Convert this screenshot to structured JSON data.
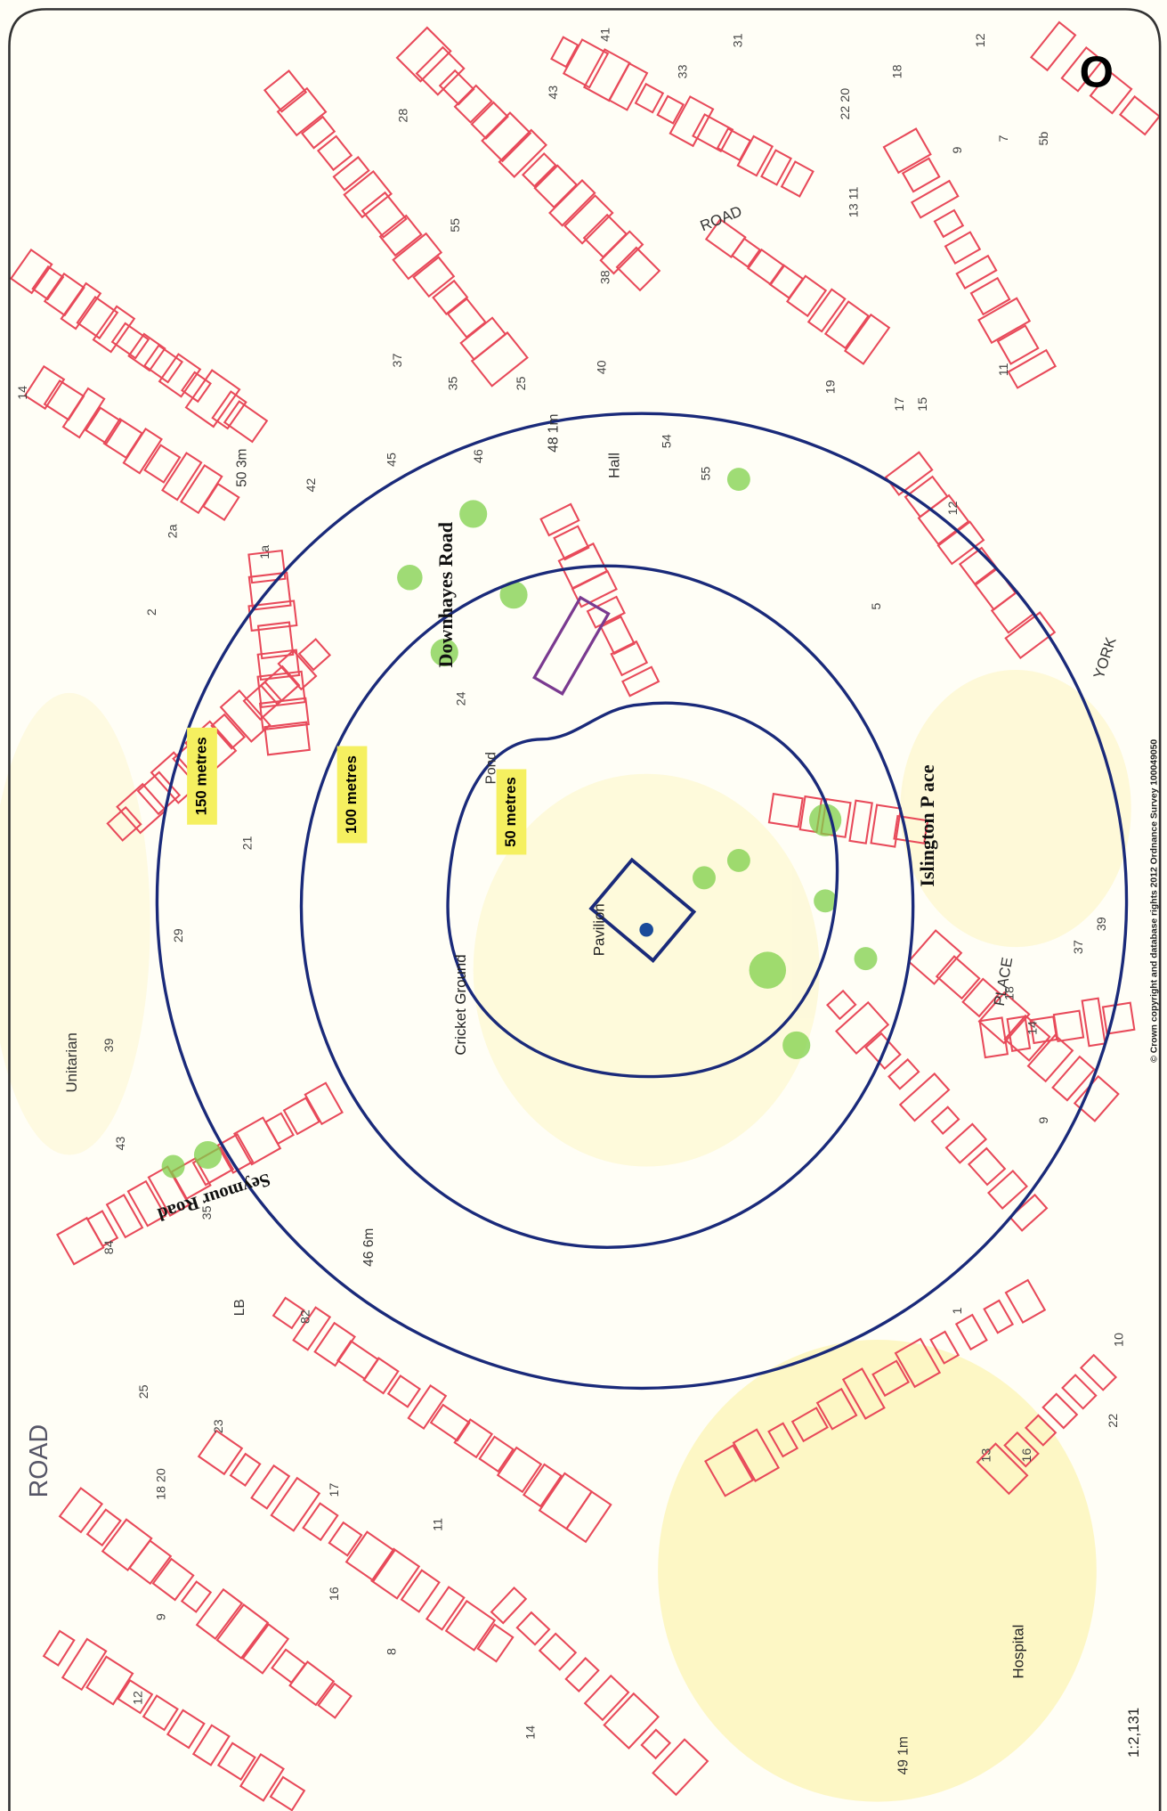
{
  "labels": [
    "150 metres",
    "100 metres",
    "50 metres",
    "Pavilion",
    "Cricket Ground",
    "Pond",
    "Downhayes Road",
    "Islington P ace",
    "Seymour Road",
    "ROAD",
    "YORK",
    "PLACE",
    "Hall",
    "Unitarian",
    "Hospital",
    "1:2,131",
    "49 1m",
    "46 6m",
    "50 3m",
    "48 1m",
    "LB",
    "ROAD",
    "© Crown copyright and database rights 2012 Ordnance Survey 100049050",
    "O"
  ],
  "house_numbers": [
    "9",
    "7",
    "5b",
    "13 11",
    "22 20",
    "18",
    "12",
    "31",
    "33",
    "43",
    "41",
    "28",
    "55",
    "37",
    "35",
    "25",
    "40",
    "38",
    "46",
    "54",
    "55",
    "45",
    "42",
    "14",
    "12",
    "17",
    "15",
    "11",
    "19",
    "29",
    "24",
    "21",
    "39",
    "43",
    "35",
    "84",
    "82",
    "25",
    "23",
    "18 20",
    "17",
    "11",
    "16",
    "9",
    "8",
    "14",
    "12",
    "22",
    "13",
    "16",
    "10",
    "14",
    "9",
    "37",
    "39",
    "18",
    "1",
    "5",
    "1a",
    "2a",
    "2"
  ]
}
